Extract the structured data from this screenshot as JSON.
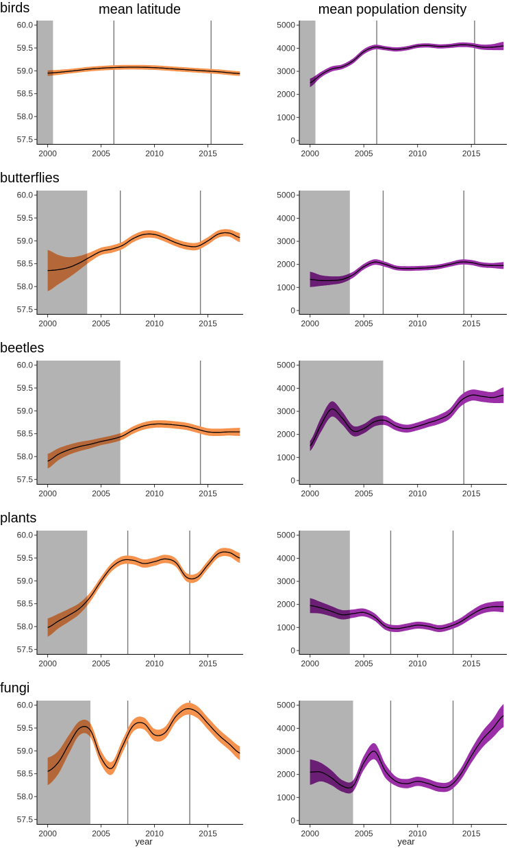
{
  "chart_data": {
    "type": "line",
    "column_titles": [
      "mean latitude",
      "mean population density"
    ],
    "xlabel": "year",
    "x_ticks": [
      "2000",
      "2005",
      "2010",
      "2015"
    ],
    "xlim": [
      1999,
      2018.3
    ],
    "columns": [
      {
        "name": "mean latitude",
        "color": "#F5924E",
        "shade_overlap_color": "#B4683A",
        "ylim": [
          57.4,
          60.1
        ],
        "y_ticks": [
          57.5,
          58.0,
          58.5,
          59.0,
          59.5,
          60.0
        ],
        "y_tick_labels": [
          "57.5",
          "58.0",
          "58.5",
          "59.0",
          "59.5",
          "60.0"
        ]
      },
      {
        "name": "mean population density",
        "color": "#9B2FA8",
        "shade_overlap_color": "#6A1E74",
        "ylim": [
          -150,
          5200
        ],
        "y_ticks": [
          0,
          1000,
          2000,
          3000,
          4000,
          5000
        ],
        "y_tick_labels": [
          "0",
          "1000",
          "2000",
          "3000",
          "4000",
          "5000"
        ]
      }
    ],
    "groups": [
      {
        "name": "birds",
        "shaded_region": [
          1999,
          2000.5
        ],
        "breakpoints": [
          2006.2,
          2015.3
        ],
        "mean_latitude": {
          "x": [
            2000,
            2002,
            2004,
            2006,
            2008,
            2010,
            2012,
            2014,
            2016,
            2018
          ],
          "y": [
            58.95,
            58.99,
            59.04,
            59.07,
            59.08,
            59.07,
            59.04,
            59.01,
            58.98,
            58.94
          ],
          "ci": [
            0.06,
            0.05,
            0.05,
            0.05,
            0.05,
            0.05,
            0.05,
            0.05,
            0.05,
            0.05
          ]
        },
        "mean_population_density": {
          "x": [
            2000,
            2001,
            2002,
            2003,
            2004,
            2005,
            2006,
            2007,
            2008,
            2009,
            2010,
            2011,
            2012,
            2013,
            2014,
            2015,
            2016,
            2017,
            2018
          ],
          "y": [
            2500,
            2850,
            3100,
            3200,
            3450,
            3850,
            4050,
            4000,
            3950,
            4000,
            4100,
            4120,
            4080,
            4100,
            4150,
            4130,
            4050,
            4050,
            4100
          ],
          "ci": [
            180,
            120,
            110,
            100,
            110,
            110,
            100,
            90,
            90,
            90,
            90,
            90,
            90,
            90,
            100,
            100,
            110,
            130,
            180
          ]
        }
      },
      {
        "name": "butterflies",
        "shaded_region": [
          1999,
          2003.7
        ],
        "breakpoints": [
          2006.8,
          2014.3
        ],
        "mean_latitude": {
          "x": [
            2000,
            2001,
            2002,
            2003,
            2004,
            2005,
            2006,
            2007,
            2008,
            2009,
            2010,
            2011,
            2012,
            2013,
            2014,
            2015,
            2016,
            2017,
            2018
          ],
          "y": [
            58.35,
            58.37,
            58.42,
            58.52,
            58.65,
            58.77,
            58.82,
            58.9,
            59.05,
            59.14,
            59.14,
            59.06,
            58.96,
            58.89,
            58.88,
            59.0,
            59.15,
            59.17,
            59.07
          ],
          "ci": [
            0.45,
            0.32,
            0.22,
            0.15,
            0.1,
            0.08,
            0.08,
            0.08,
            0.08,
            0.08,
            0.08,
            0.08,
            0.08,
            0.08,
            0.08,
            0.08,
            0.08,
            0.08,
            0.1
          ]
        },
        "mean_population_density": {
          "x": [
            2000,
            2001,
            2002,
            2003,
            2004,
            2005,
            2006,
            2007,
            2008,
            2009,
            2010,
            2011,
            2012,
            2013,
            2014,
            2015,
            2016,
            2017,
            2018
          ],
          "y": [
            1350,
            1300,
            1300,
            1350,
            1550,
            1900,
            2100,
            2000,
            1850,
            1820,
            1830,
            1850,
            1900,
            2000,
            2100,
            2080,
            1980,
            1950,
            1950
          ],
          "ci": [
            330,
            230,
            180,
            150,
            130,
            120,
            120,
            110,
            100,
            100,
            100,
            100,
            100,
            100,
            110,
            110,
            110,
            110,
            150
          ]
        }
      },
      {
        "name": "beetles",
        "shaded_region": [
          1999,
          2006.8
        ],
        "breakpoints": [
          2014.3
        ],
        "mean_latitude": {
          "x": [
            2000,
            2001,
            2002,
            2003,
            2004,
            2005,
            2006,
            2007,
            2008,
            2009,
            2010,
            2011,
            2012,
            2013,
            2014,
            2015,
            2016,
            2017,
            2018
          ],
          "y": [
            57.9,
            58.05,
            58.15,
            58.22,
            58.27,
            58.33,
            58.38,
            58.45,
            58.58,
            58.67,
            58.71,
            58.71,
            58.69,
            58.66,
            58.6,
            58.54,
            58.53,
            58.54,
            58.54
          ],
          "ci": [
            0.16,
            0.13,
            0.11,
            0.1,
            0.09,
            0.08,
            0.08,
            0.08,
            0.08,
            0.08,
            0.08,
            0.08,
            0.08,
            0.08,
            0.08,
            0.08,
            0.08,
            0.08,
            0.09
          ]
        },
        "mean_population_density": {
          "x": [
            2000,
            2001,
            2002,
            2003,
            2004,
            2005,
            2006,
            2007,
            2008,
            2009,
            2010,
            2011,
            2012,
            2013,
            2014,
            2015,
            2016,
            2017,
            2018
          ],
          "y": [
            1500,
            2400,
            3100,
            2700,
            2150,
            2250,
            2550,
            2600,
            2350,
            2250,
            2350,
            2500,
            2650,
            2900,
            3450,
            3700,
            3650,
            3600,
            3700
          ],
          "ci": [
            220,
            300,
            330,
            280,
            220,
            200,
            200,
            200,
            180,
            170,
            170,
            180,
            200,
            220,
            240,
            240,
            240,
            240,
            340
          ]
        }
      },
      {
        "name": "plants",
        "shaded_region": [
          1999,
          2003.7
        ],
        "breakpoints": [
          2007.5,
          2013.3
        ],
        "mean_latitude": {
          "x": [
            2000,
            2001,
            2002,
            2003,
            2004,
            2005,
            2006,
            2007,
            2008,
            2009,
            2010,
            2011,
            2012,
            2013,
            2014,
            2015,
            2016,
            2017,
            2018
          ],
          "y": [
            57.98,
            58.12,
            58.25,
            58.4,
            58.65,
            59.0,
            59.3,
            59.45,
            59.45,
            59.38,
            59.42,
            59.48,
            59.4,
            59.08,
            59.08,
            59.35,
            59.6,
            59.62,
            59.5
          ],
          "ci": [
            0.2,
            0.16,
            0.14,
            0.12,
            0.1,
            0.09,
            0.09,
            0.09,
            0.09,
            0.09,
            0.09,
            0.09,
            0.09,
            0.09,
            0.09,
            0.09,
            0.09,
            0.09,
            0.11
          ]
        },
        "mean_population_density": {
          "x": [
            2000,
            2001,
            2002,
            2003,
            2004,
            2005,
            2006,
            2007,
            2008,
            2009,
            2010,
            2011,
            2012,
            2013,
            2014,
            2015,
            2016,
            2017,
            2018
          ],
          "y": [
            1950,
            1850,
            1700,
            1550,
            1600,
            1650,
            1450,
            1050,
            950,
            1020,
            1100,
            1050,
            950,
            1050,
            1250,
            1550,
            1800,
            1900,
            1900
          ],
          "ci": [
            320,
            250,
            220,
            200,
            180,
            170,
            160,
            150,
            150,
            150,
            150,
            150,
            150,
            150,
            160,
            180,
            200,
            210,
            240
          ]
        }
      },
      {
        "name": "fungi",
        "shaded_region": [
          1999,
          2004
        ],
        "breakpoints": [
          2007.5,
          2013.3
        ],
        "mean_latitude": {
          "x": [
            2000,
            2001,
            2002,
            2003,
            2004,
            2005,
            2006,
            2007,
            2008,
            2009,
            2010,
            2011,
            2012,
            2013,
            2014,
            2015,
            2016,
            2017,
            2018
          ],
          "y": [
            58.55,
            58.75,
            59.15,
            59.5,
            59.45,
            58.85,
            58.62,
            59.1,
            59.55,
            59.6,
            59.35,
            59.4,
            59.75,
            59.92,
            59.85,
            59.6,
            59.35,
            59.15,
            58.95
          ],
          "ci": [
            0.3,
            0.25,
            0.2,
            0.15,
            0.15,
            0.15,
            0.14,
            0.14,
            0.13,
            0.13,
            0.13,
            0.13,
            0.13,
            0.13,
            0.13,
            0.13,
            0.13,
            0.13,
            0.15
          ]
        },
        "mean_population_density": {
          "x": [
            2000,
            2001,
            2002,
            2003,
            2004,
            2005,
            2006,
            2007,
            2008,
            2009,
            2010,
            2011,
            2012,
            2013,
            2014,
            2015,
            2016,
            2017,
            2018
          ],
          "y": [
            2100,
            2100,
            1850,
            1500,
            1500,
            2500,
            3000,
            2150,
            1700,
            1600,
            1700,
            1600,
            1450,
            1500,
            2000,
            2800,
            3500,
            4000,
            4550
          ],
          "ci": [
            550,
            400,
            320,
            250,
            240,
            300,
            350,
            300,
            200,
            200,
            200,
            200,
            200,
            200,
            250,
            300,
            350,
            400,
            500
          ]
        }
      }
    ]
  }
}
